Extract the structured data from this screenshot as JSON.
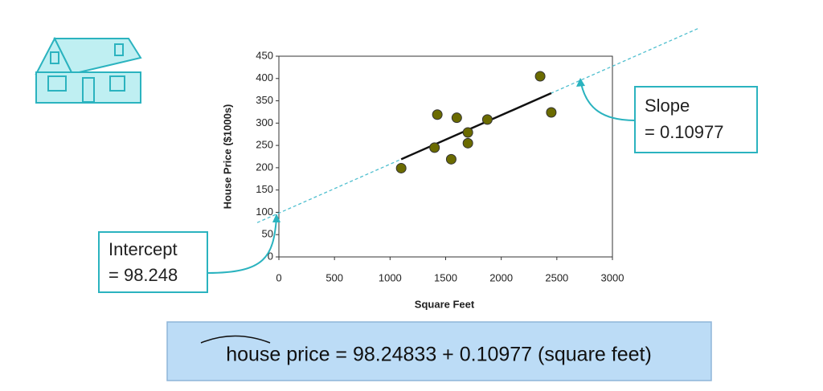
{
  "chart_data": {
    "type": "scatter",
    "x_label": "Square Feet",
    "y_label": "House Price ($1000s)",
    "xlim": [
      0,
      3000
    ],
    "xticks": [
      0,
      500,
      1000,
      1500,
      2000,
      2500,
      3000
    ],
    "ylim": [
      0,
      450
    ],
    "yticks": [
      0,
      50,
      100,
      150,
      200,
      250,
      300,
      350,
      400,
      450
    ],
    "series": [
      {
        "color": "#6b6b00",
        "x": [
          1100,
          1400,
          1425,
          1550,
          1600,
          1700,
          1700,
          1875,
          2350,
          2450
        ],
        "values": [
          199,
          245,
          319,
          219,
          312,
          279,
          255,
          308,
          405,
          324
        ]
      }
    ],
    "trendline": {
      "intercept": 98.24833,
      "slope": 0.10977,
      "x_range": [
        1100,
        2450
      ],
      "color": "#111111",
      "extension_color": "#4fbfcf"
    },
    "annotations": [
      {
        "lines": [
          "Intercept",
          "= 98.248"
        ]
      },
      {
        "lines": [
          "Slope",
          "= 0.10977"
        ]
      }
    ],
    "equation": "house price = 98.24833 + 0.10977 (square feet)"
  }
}
